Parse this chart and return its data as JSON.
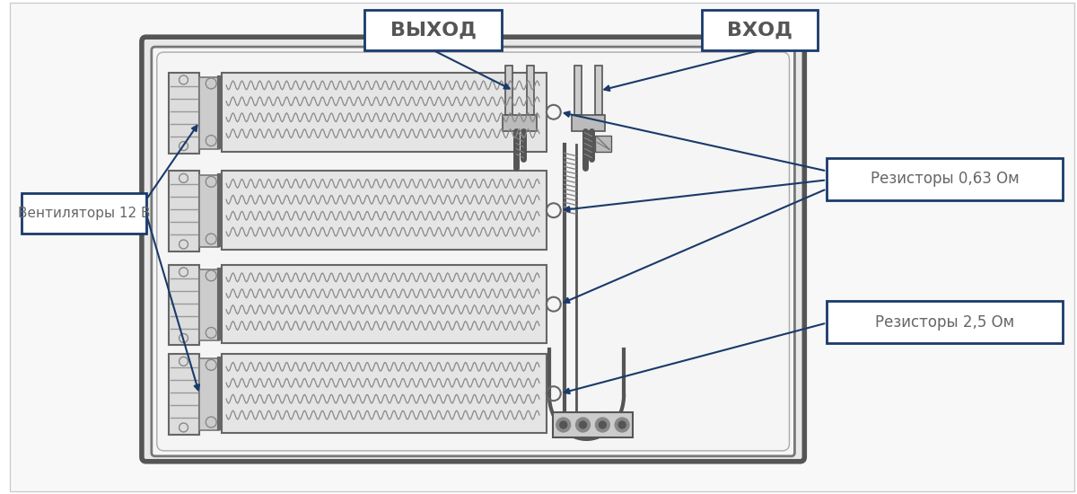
{
  "bg_color": "#ffffff",
  "label_box_color": "#1a3a6b",
  "arrow_color": "#1a3a6b",
  "label_text_color": "#666666",
  "labels": {
    "vyhod": "ВЫХОД",
    "vhod": "ВХОД",
    "fans": "Вентиляторы 12 В",
    "res063": "Резисторы 0,63 Ом",
    "res25": "Резисторы 2,5 Ом"
  }
}
